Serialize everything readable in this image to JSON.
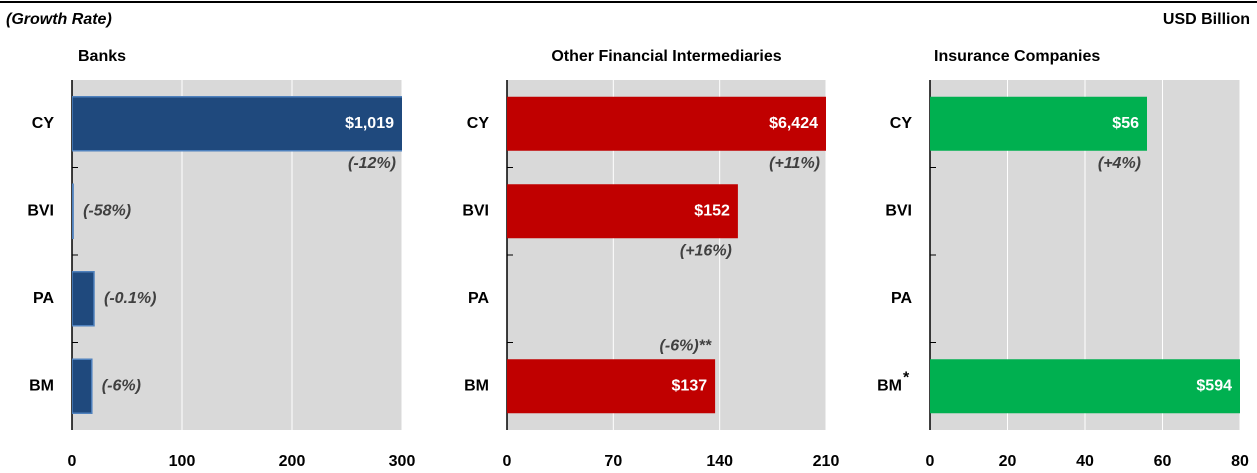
{
  "header": {
    "left": "(Growth Rate)",
    "right": "USD Billion"
  },
  "chart_data": [
    {
      "type": "bar",
      "orientation": "horizontal",
      "title": "Banks",
      "color": "#1f497d",
      "categories": [
        "CY",
        "BVI",
        "PA",
        "BM"
      ],
      "category_marks": [
        null,
        null,
        null,
        null
      ],
      "values": [
        1019,
        1,
        20,
        18
      ],
      "value_labels": [
        "$1,019",
        null,
        null,
        null
      ],
      "growth_labels": [
        "(-12%)",
        "(-58%)",
        "(-0.1%)",
        "(-6%)"
      ],
      "xlim": [
        0,
        300
      ],
      "xticks": [
        0,
        100,
        200,
        300
      ],
      "grid": true
    },
    {
      "type": "bar",
      "orientation": "horizontal",
      "title": "Other Financial Intermediaries",
      "color": "#c00000",
      "categories": [
        "CY",
        "BVI",
        "PA",
        "BM"
      ],
      "category_marks": [
        null,
        null,
        null,
        null
      ],
      "values": [
        6424,
        152,
        null,
        137
      ],
      "value_labels": [
        "$6,424",
        "$152",
        null,
        "$137"
      ],
      "growth_labels": [
        "(+11%)",
        "(+16%)",
        null,
        "(-6%)**"
      ],
      "xlim": [
        0,
        210
      ],
      "xticks": [
        0,
        70,
        140,
        210
      ],
      "grid": true
    },
    {
      "type": "bar",
      "orientation": "horizontal",
      "title": "Insurance Companies",
      "color": "#00b050",
      "categories": [
        "CY",
        "BVI",
        "PA",
        "BM"
      ],
      "category_marks": [
        null,
        null,
        null,
        "*"
      ],
      "values": [
        56,
        null,
        null,
        594
      ],
      "value_labels": [
        "$56",
        null,
        null,
        "$594"
      ],
      "growth_labels": [
        "(+4%)",
        null,
        null,
        null
      ],
      "xlim": [
        0,
        80
      ],
      "xticks": [
        0,
        20,
        40,
        60,
        80
      ],
      "grid": true
    }
  ]
}
